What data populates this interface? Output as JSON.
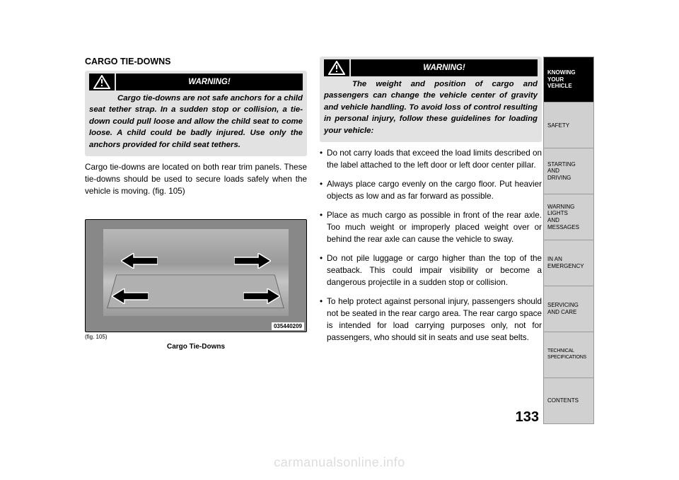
{
  "section_title": "CARGO TIE-DOWNS",
  "warning_label": "WARNING!",
  "warning1_text": "Cargo tie-downs are not safe anchors for a child seat tether strap. In a sudden stop or collision, a tie-down could pull loose and allow the child seat to come loose. A child could be badly injured. Use only the anchors provided for child seat tethers.",
  "body_text": "Cargo tie-downs are located on both rear trim panels. These tie-downs should be used to secure loads safely when the vehicle is moving.",
  "fig_ref": "(fig. 105)",
  "fig_number_small": "(fig. 105)",
  "fig_caption": "Cargo Tie-Downs",
  "image_code": "035440209",
  "warning2_text": "The weight and position of cargo and passengers can change the vehicle center of gravity and vehicle handling. To avoid loss of control resulting in personal injury, follow these guidelines for loading your vehicle:",
  "bullets": [
    "Do not carry loads that exceed the load limits described on the label attached to the left door or left door center pillar.",
    "Always place cargo evenly on the cargo floor. Put heavier objects as low and as far forward as possible.",
    "Place as much cargo as possible in front of the rear axle. Too much weight or improperly placed weight over or behind the rear axle can cause the vehicle to sway.",
    "Do not pile luggage or cargo higher than the top of the seatback. This could impair visibility or become a dangerous projectile in a sudden stop or collision.",
    "To help protect against personal injury, passengers should not be seated in the rear cargo area. The rear cargo space is intended for load carrying purposes only, not for passengers, who should sit in seats and use seat belts."
  ],
  "tabs": [
    {
      "lines": [
        "KNOWING",
        "YOUR",
        "VEHICLE"
      ],
      "active": true
    },
    {
      "lines": [
        "SAFETY"
      ],
      "active": false
    },
    {
      "lines": [
        "STARTING",
        "AND",
        "DRIVING"
      ],
      "active": false
    },
    {
      "lines": [
        "WARNING",
        "LIGHTS",
        "AND",
        "MESSAGES"
      ],
      "active": false
    },
    {
      "lines": [
        "IN AN",
        "EMERGENCY"
      ],
      "active": false
    },
    {
      "lines": [
        "SERVICING",
        "AND CARE"
      ],
      "active": false
    },
    {
      "lines": [
        "TECHNICAL",
        "SPECIFICATIONS"
      ],
      "active": false,
      "spec": true
    },
    {
      "lines": [
        "CONTENTS"
      ],
      "active": false
    }
  ],
  "page_number": "133",
  "watermark": "carmanualsonline.info",
  "colors": {
    "warning_bg": "#e2e2e2",
    "tab_inactive_bg": "#d0d0d0",
    "tab_active_bg": "#000000"
  }
}
